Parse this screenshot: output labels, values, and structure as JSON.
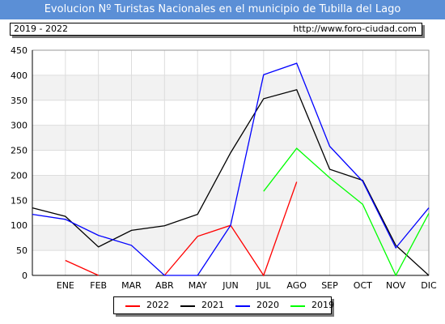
{
  "header": {
    "title": "Evolucion Nº Turistas Nacionales en el municipio de Tubilla del Lago",
    "period": "2019 - 2022",
    "url": "http://www.foro-ciudad.com"
  },
  "chart_data": {
    "type": "line",
    "categories": [
      "ENE",
      "FEB",
      "MAR",
      "ABR",
      "MAY",
      "JUN",
      "JUL",
      "AGO",
      "SEP",
      "OCT",
      "NOV",
      "DIC"
    ],
    "ylim": [
      0,
      450
    ],
    "yticks": [
      0,
      50,
      100,
      150,
      200,
      250,
      300,
      350,
      400,
      450
    ],
    "grid": true,
    "legend_position": "bottom",
    "series": [
      {
        "name": "2022",
        "color": "#ff0000",
        "values": [
          30,
          0,
          null,
          0,
          78,
          100,
          0,
          187,
          null,
          null,
          null,
          null
        ]
      },
      {
        "name": "2021",
        "color": "#000000",
        "values": [
          118,
          57,
          90,
          99,
          122,
          245,
          353,
          371,
          212,
          190,
          60,
          0
        ]
      },
      {
        "name": "2020",
        "color": "#0000ff",
        "values": [
          112,
          80,
          60,
          0,
          0,
          100,
          401,
          424,
          258,
          188,
          55,
          135
        ]
      },
      {
        "name": "2019",
        "color": "#00ff00",
        "values": [
          null,
          null,
          null,
          null,
          null,
          null,
          168,
          254,
          195,
          142,
          0,
          124
        ]
      }
    ],
    "start_values": {
      "2021": 135,
      "2020": 122
    }
  }
}
